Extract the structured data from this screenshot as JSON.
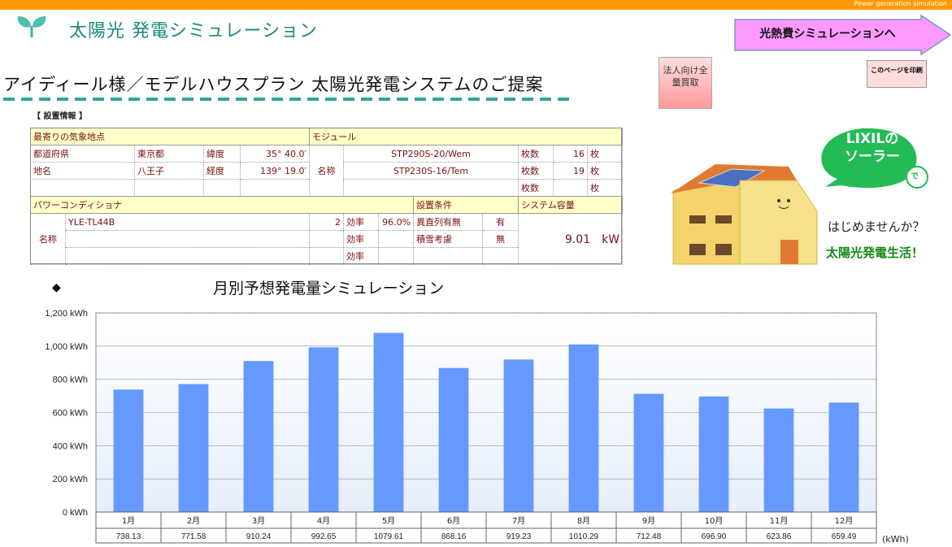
{
  "header": {
    "tagline": "Power generation simulation",
    "title": "太陽光 発電シミュレーション",
    "nav_button": "光熱費シミュレーションへ",
    "corp_button": "法人向け全量買取",
    "print_button": "このページを印刷"
  },
  "heading": "アイディール様／モデルハウスプラン 太陽光発電システムのご提案",
  "section_label": "【 設置情報 】",
  "location": {
    "header": "最寄りの気象地点",
    "pref_label": "都道府県",
    "pref": "東京都",
    "lat_label": "緯度",
    "lat": "35° 40.0′",
    "place_label": "地名",
    "place": "八王子",
    "lon_label": "経度",
    "lon": "139° 19.0′"
  },
  "module": {
    "header": "モジュール",
    "name_label": "名称",
    "count_label": "枚数",
    "unit": "枚",
    "rows": [
      {
        "name": "STP290S-20/Wem",
        "count": "16"
      },
      {
        "name": "STP230S-16/Tem",
        "count": "19"
      },
      {
        "name": "",
        "count": ""
      }
    ]
  },
  "pcs": {
    "header": "パワーコンディショナ",
    "name_label": "名称",
    "eff_label": "効率",
    "rows": [
      {
        "name": "YLE-TL44B",
        "count": "2",
        "eff": "96.0%"
      },
      {
        "name": "",
        "count": "",
        "eff": ""
      },
      {
        "name": "",
        "count": "",
        "eff": ""
      }
    ]
  },
  "conditions": {
    "header": "設置条件",
    "rows": [
      {
        "label": "異直列有無",
        "value": "有"
      },
      {
        "label": "積雪考慮",
        "value": "無"
      }
    ]
  },
  "capacity": {
    "header": "システム容量",
    "value": "9.01　kW"
  },
  "promo": {
    "bubble_line1": "LIXILの",
    "bubble_line2": "ソーラー",
    "bubble_de": "で",
    "line1": "はじめませんか？",
    "line2": "太陽光発電生活！"
  },
  "chart_title": "月別予想発電量シミュレーション",
  "chart_data": {
    "type": "bar",
    "title": "月別予想発電量シミュレーション",
    "categories": [
      "1月",
      "2月",
      "3月",
      "4月",
      "5月",
      "6月",
      "7月",
      "8月",
      "9月",
      "10月",
      "11月",
      "12月"
    ],
    "values": [
      738.13,
      771.58,
      910.24,
      992.65,
      1079.61,
      868.16,
      919.23,
      1010.29,
      712.48,
      696.9,
      623.86,
      659.49
    ],
    "value_labels": [
      "738.13",
      "771.58",
      "910.24",
      "992.65",
      "1079.61",
      "868.16",
      "919.23",
      "1010.29",
      "712.48",
      "696.90",
      "623.86",
      "659.49"
    ],
    "ylim": [
      0,
      1200
    ],
    "yticks": [
      "0 kWh",
      "200 kWh",
      "400 kWh",
      "600 kWh",
      "800 kWh",
      "1,000 kWh",
      "1,200 kWh"
    ],
    "unit": "(kWh)",
    "bar_color": "#6699ff",
    "grid": true
  }
}
